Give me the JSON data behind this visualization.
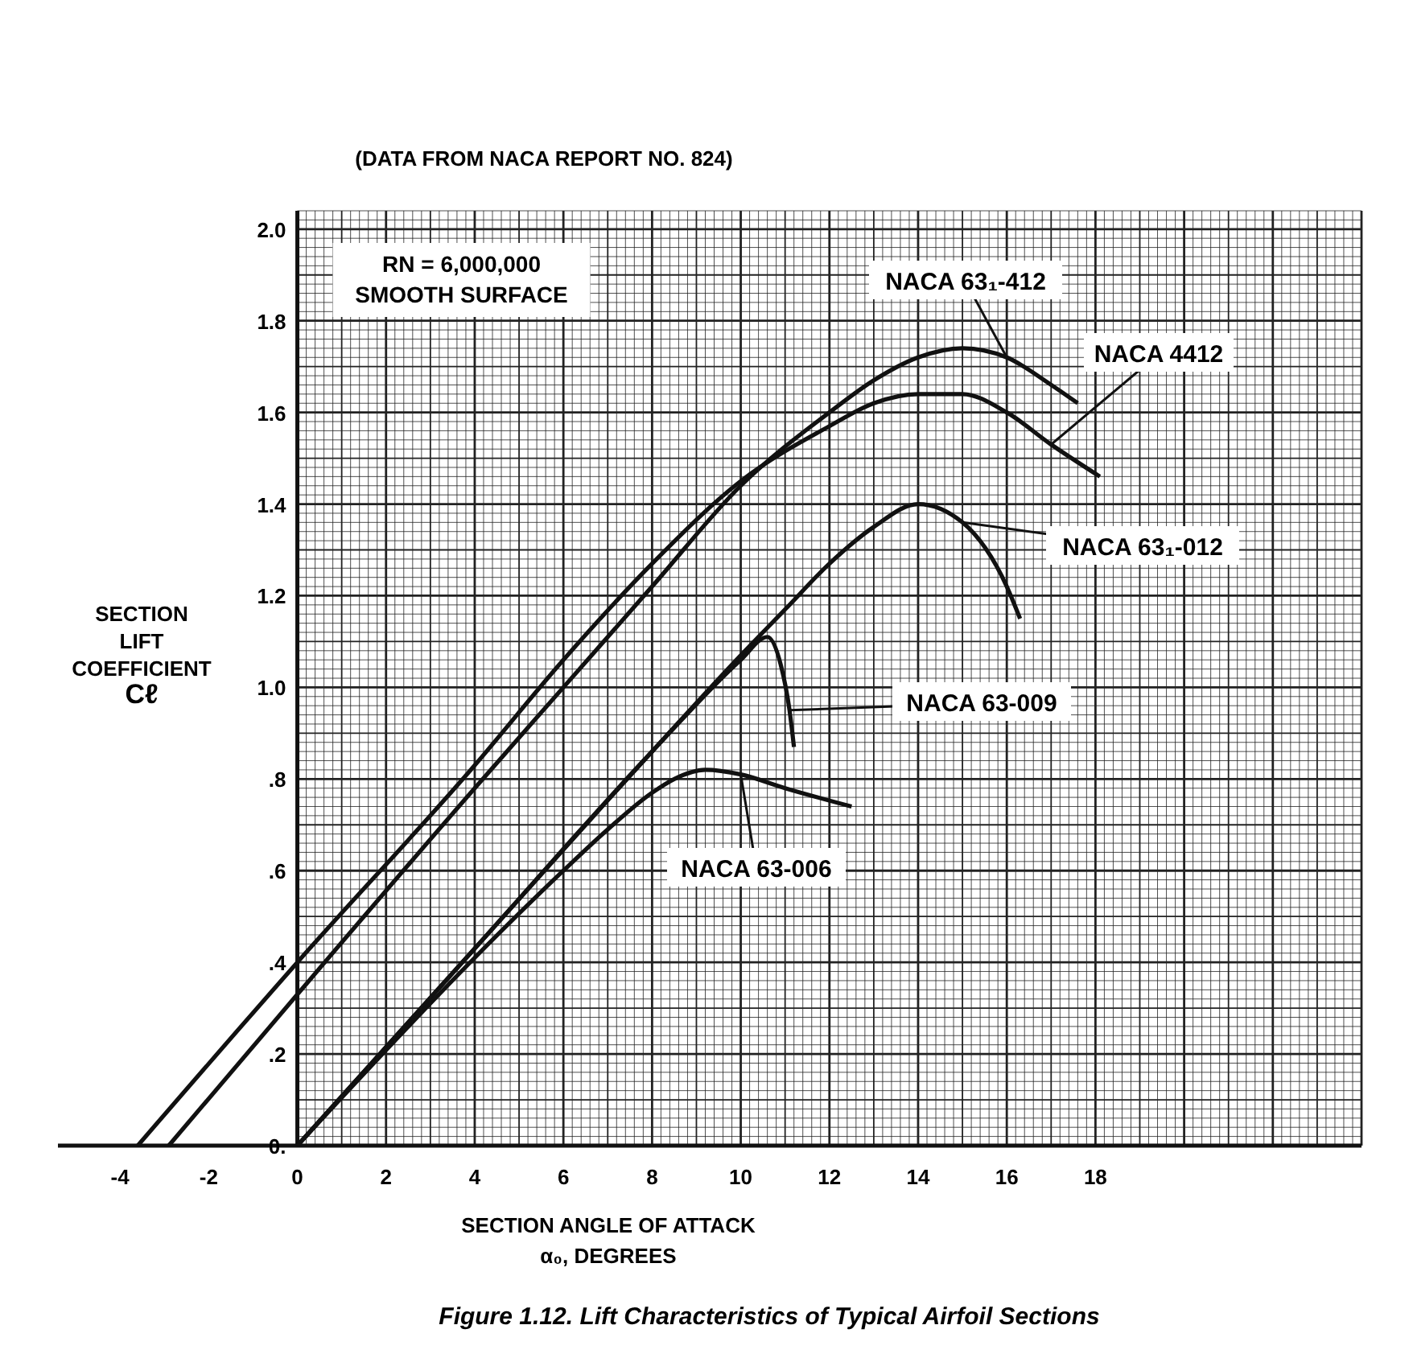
{
  "chart_data": {
    "type": "line",
    "title": "Figure 1.12. Lift Characteristics of Typical Airfoil Sections",
    "subtitle": "(DATA FROM NACA REPORT NO. 824)",
    "xlabel": "SECTION ANGLE OF ATTACK\nα₀, DEGREES",
    "ylabel": "SECTION\nLIFT\nCOEFFICIENT\nCℓ",
    "annotations": [
      "RN = 6,000,000\nSMOOTH SURFACE"
    ],
    "xlim": [
      -5.4,
      24
    ],
    "ylim": [
      0,
      2.04
    ],
    "xticks": [
      -4,
      -2,
      0,
      2,
      4,
      6,
      8,
      10,
      12,
      14,
      16,
      18
    ],
    "yticks": [
      {
        "value": 0,
        "label": "0."
      },
      {
        "value": 0.2,
        "label": ".2"
      },
      {
        "value": 0.4,
        "label": ".4"
      },
      {
        "value": 0.6,
        "label": ".6"
      },
      {
        "value": 0.8,
        "label": ".8"
      },
      {
        "value": 1.0,
        "label": "1.0"
      },
      {
        "value": 1.2,
        "label": "1.2"
      },
      {
        "value": 1.4,
        "label": "1.4"
      },
      {
        "value": 1.6,
        "label": "1.6"
      },
      {
        "value": 1.8,
        "label": "1.8"
      },
      {
        "value": 2.0,
        "label": "2.0"
      }
    ],
    "grid": true,
    "legend": false,
    "marker": "none",
    "line_style": "solid",
    "series": [
      {
        "name": "NACA 63₁-412",
        "color": "#111111",
        "x": [
          -2.9,
          0,
          4,
          6,
          8,
          10,
          12,
          13,
          14,
          15,
          16,
          17,
          17.6
        ],
        "values": [
          0,
          0.33,
          0.78,
          1.0,
          1.22,
          1.44,
          1.6,
          1.67,
          1.72,
          1.74,
          1.72,
          1.66,
          1.62
        ]
      },
      {
        "name": "NACA 4412",
        "color": "#111111",
        "x": [
          -3.6,
          0,
          4,
          6,
          8,
          10,
          12,
          13,
          14,
          15,
          16,
          17,
          18.1
        ],
        "values": [
          0,
          0.4,
          0.83,
          1.06,
          1.27,
          1.45,
          1.57,
          1.62,
          1.64,
          1.64,
          1.6,
          1.53,
          1.46
        ]
      },
      {
        "name": "NACA 63₁-012",
        "color": "#111111",
        "x": [
          0,
          4,
          8,
          10,
          11,
          12,
          13,
          14,
          15,
          16,
          16.3
        ],
        "values": [
          0,
          0.43,
          0.86,
          1.07,
          1.17,
          1.27,
          1.35,
          1.4,
          1.36,
          1.22,
          1.15
        ]
      },
      {
        "name": "NACA 63-009",
        "color": "#111111",
        "x": [
          0,
          4,
          8,
          10,
          10.6,
          10.9,
          11.1,
          11.2
        ],
        "values": [
          0,
          0.43,
          0.86,
          1.06,
          1.11,
          1.05,
          0.95,
          0.87
        ]
      },
      {
        "name": "NACA 63-006",
        "color": "#111111",
        "x": [
          0,
          4,
          6,
          7,
          8,
          8.5,
          9.2,
          10,
          11,
          12.5
        ],
        "values": [
          0,
          0.41,
          0.6,
          0.69,
          0.77,
          0.8,
          0.82,
          0.81,
          0.78,
          0.74
        ]
      }
    ]
  }
}
